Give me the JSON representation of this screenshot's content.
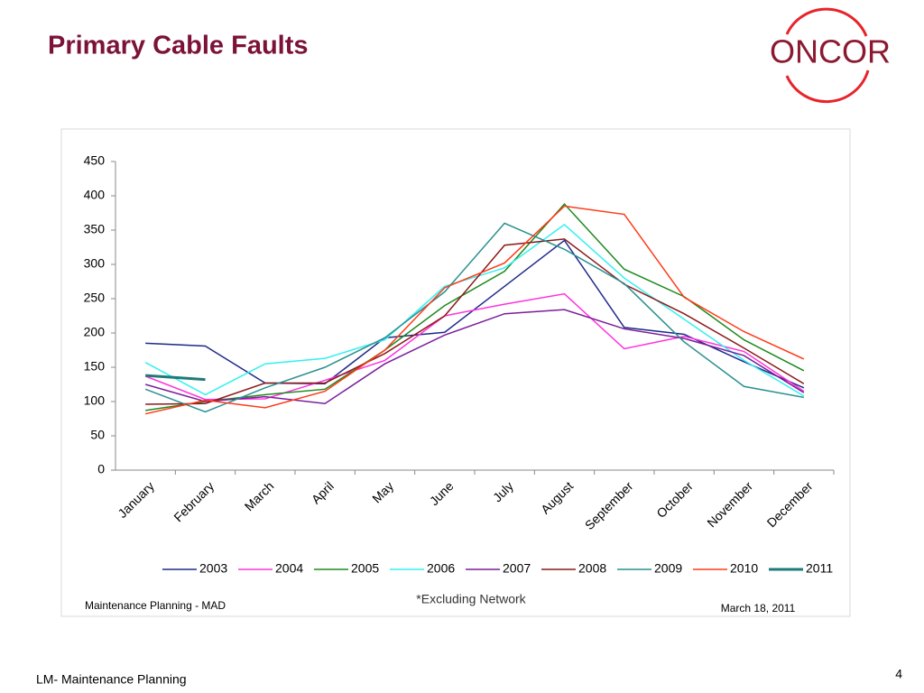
{
  "slide": {
    "title": "Primary Cable Faults",
    "logo": "ONCOR",
    "footer": "LM- Maintenance Planning",
    "page": "4"
  },
  "chart_data": {
    "type": "line",
    "categories": [
      "January",
      "February",
      "March",
      "April",
      "May",
      "June",
      "July",
      "August",
      "September",
      "October",
      "November",
      "December"
    ],
    "series": [
      {
        "name": "2003",
        "color": "#1f2a8a",
        "values": [
          185,
          181,
          127,
          126,
          193,
          201,
          268,
          335,
          208,
          198,
          158,
          120
        ]
      },
      {
        "name": "2004",
        "color": "#ff33dd",
        "values": [
          137,
          103,
          104,
          131,
          160,
          225,
          242,
          257,
          177,
          195,
          173,
          115
        ]
      },
      {
        "name": "2005",
        "color": "#1e8a1e",
        "values": [
          87,
          100,
          110,
          118,
          175,
          240,
          290,
          388,
          293,
          253,
          190,
          145
        ]
      },
      {
        "name": "2006",
        "color": "#33f0f0",
        "values": [
          157,
          110,
          155,
          163,
          190,
          268,
          295,
          358,
          280,
          220,
          160,
          108
        ]
      },
      {
        "name": "2007",
        "color": "#7a1e9a",
        "values": [
          125,
          100,
          107,
          97,
          155,
          197,
          228,
          234,
          206,
          192,
          167,
          113
        ]
      },
      {
        "name": "2008",
        "color": "#8b1a1a",
        "values": [
          96,
          97,
          127,
          127,
          170,
          225,
          328,
          337,
          271,
          228,
          178,
          126
        ]
      },
      {
        "name": "2009",
        "color": "#2a9090",
        "values": [
          118,
          85,
          120,
          150,
          193,
          260,
          360,
          322,
          272,
          187,
          122,
          106
        ]
      },
      {
        "name": "2010",
        "color": "#ff3a1a",
        "values": [
          82,
          102,
          91,
          115,
          175,
          266,
          302,
          385,
          373,
          252,
          202,
          162
        ]
      },
      {
        "name": "2011",
        "color": "#1f7a7a",
        "values": [
          138,
          132,
          null,
          null,
          null,
          null,
          null,
          null,
          null,
          null,
          null,
          null
        ]
      }
    ],
    "ylim": [
      0,
      450
    ],
    "yticks": [
      0,
      50,
      100,
      150,
      200,
      250,
      300,
      350,
      400,
      450
    ],
    "legend": "bottom",
    "annotations": [
      "Maintenance Planning - MAD",
      "*Excluding Network",
      "March 18, 2011"
    ]
  }
}
